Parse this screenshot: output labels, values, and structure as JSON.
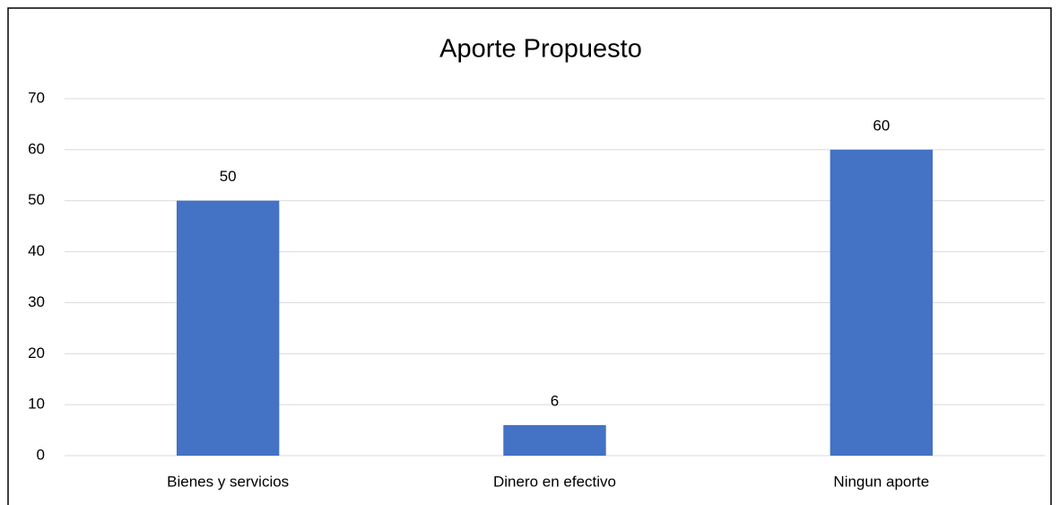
{
  "chart_data": {
    "type": "bar",
    "title": "Aporte Propuesto",
    "categories": [
      "Bienes y servicios",
      "Dinero en efectivo",
      "Ningun aporte"
    ],
    "values": [
      50,
      6,
      60
    ],
    "color": "#4472c4",
    "ylim": [
      0,
      70
    ],
    "yticks": [
      0,
      10,
      20,
      30,
      40,
      50,
      60,
      70
    ],
    "grid": true
  }
}
